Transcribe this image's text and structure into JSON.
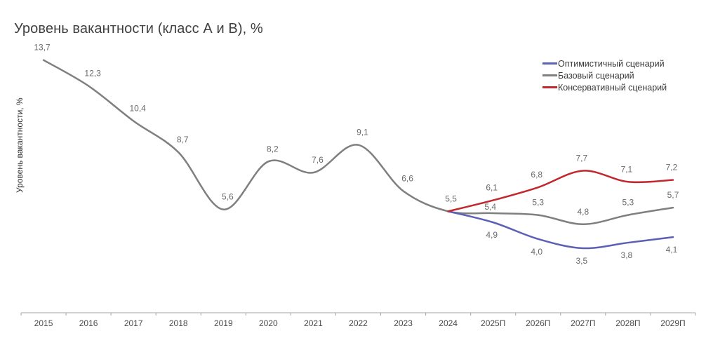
{
  "chart_data": {
    "type": "line",
    "title": "Уровень вакантности (класс А и В), %",
    "xlabel": "",
    "ylabel": "Уровень вакантности, %",
    "ylim": [
      0,
      14
    ],
    "grid": false,
    "legend_position": "top-right",
    "categories": [
      "2015",
      "2016",
      "2017",
      "2018",
      "2019",
      "2020",
      "2021",
      "2022",
      "2023",
      "2024",
      "2025П",
      "2026П",
      "2027П",
      "2028П",
      "2029П"
    ],
    "series": [
      {
        "name": "Оптимистичный сценарий",
        "color": "#5b5fb5",
        "values": [
          null,
          null,
          null,
          null,
          null,
          null,
          null,
          null,
          null,
          5.5,
          4.9,
          4.0,
          3.5,
          3.8,
          4.1
        ],
        "labels": [
          null,
          null,
          null,
          null,
          null,
          null,
          null,
          null,
          null,
          null,
          "4,9",
          "4,0",
          "3,5",
          "3,8",
          "4,1"
        ],
        "label_position": "below"
      },
      {
        "name": "Базовый сценарий",
        "color": "#7f7f7f",
        "values": [
          13.7,
          12.3,
          10.4,
          8.7,
          5.6,
          8.2,
          7.6,
          9.1,
          6.6,
          5.5,
          5.4,
          5.3,
          4.8,
          5.3,
          5.7
        ],
        "labels": [
          "13,7",
          "12,3",
          "10,4",
          "8,7",
          "5,6",
          "8,2",
          "7,6",
          "9,1",
          "6,6",
          "5,5",
          "5,4",
          "5,3",
          "4,8",
          "5,3",
          "5,7"
        ],
        "label_position": "above"
      },
      {
        "name": "Консервативный сценарий",
        "color": "#c1272d",
        "values": [
          null,
          null,
          null,
          null,
          null,
          null,
          null,
          null,
          null,
          5.5,
          6.1,
          6.8,
          7.7,
          7.1,
          7.2
        ],
        "labels": [
          null,
          null,
          null,
          null,
          null,
          null,
          null,
          null,
          null,
          null,
          "6,1",
          "6,8",
          "7,7",
          "7,1",
          "7,2"
        ],
        "label_position": "above"
      }
    ]
  }
}
